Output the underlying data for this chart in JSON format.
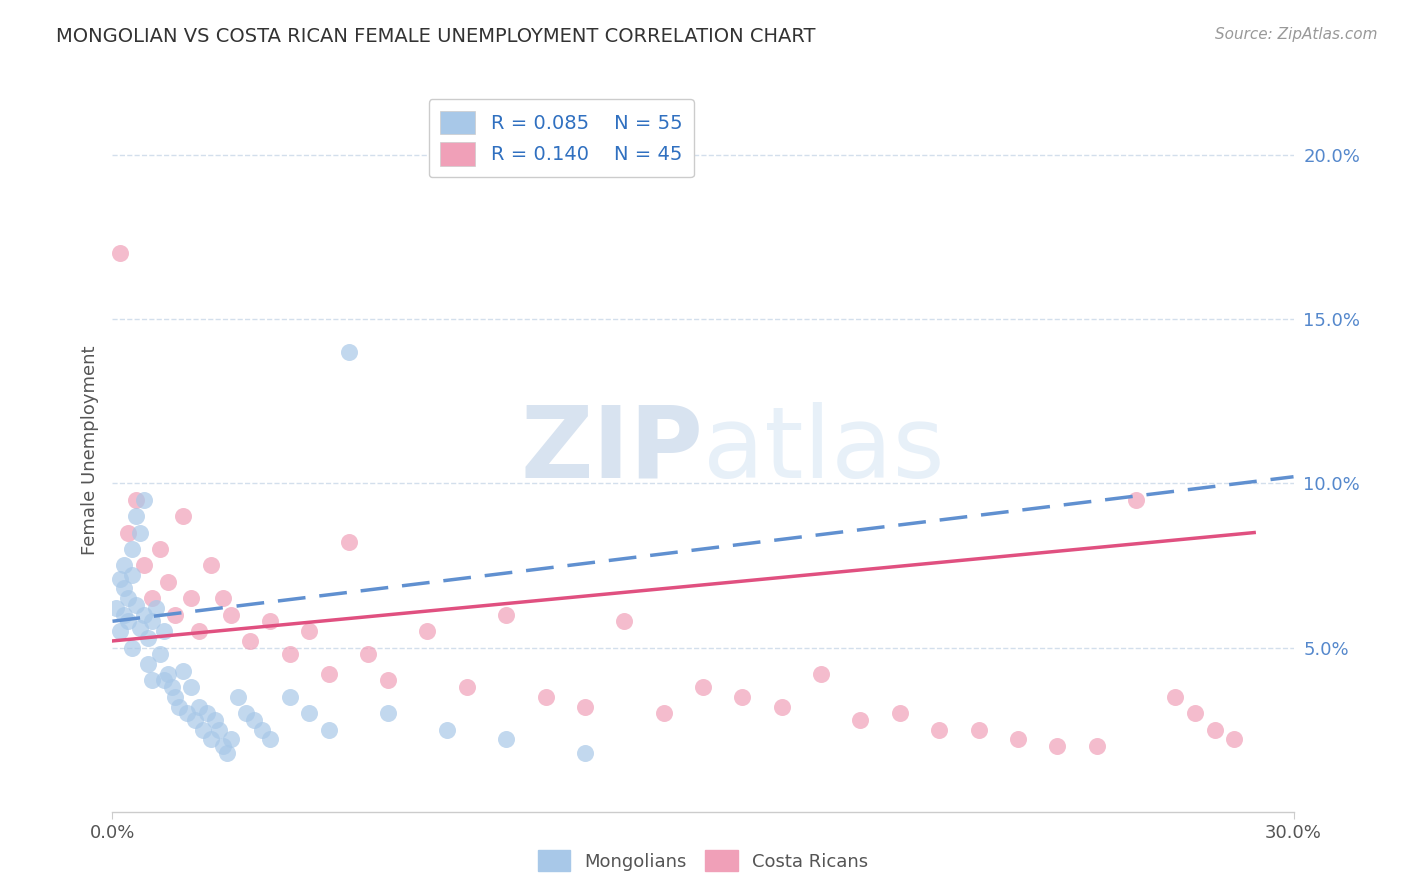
{
  "title": "MONGOLIAN VS COSTA RICAN FEMALE UNEMPLOYMENT CORRELATION CHART",
  "source": "Source: ZipAtlas.com",
  "ylabel": "Female Unemployment",
  "xlim": [
    0,
    0.3
  ],
  "ylim": [
    0,
    0.22
  ],
  "xticks": [
    0.0,
    0.3
  ],
  "xticklabels": [
    "0.0%",
    "30.0%"
  ],
  "yticks": [
    0.05,
    0.1,
    0.15,
    0.2
  ],
  "yticklabels": [
    "5.0%",
    "10.0%",
    "15.0%",
    "20.0%"
  ],
  "mongolian_color": "#a8c8e8",
  "costa_rican_color": "#f0a0b8",
  "mongolian_line_color": "#6090d0",
  "costa_rican_line_color": "#e05080",
  "mongolian_R": 0.085,
  "mongolian_N": 55,
  "costa_rican_R": 0.14,
  "costa_rican_N": 45,
  "legend_text_color": "#3070c0",
  "watermark": "ZIPatlas",
  "background_color": "#ffffff",
  "grid_color": "#c8d8e8",
  "mongolian_scatter_x": [
    0.001,
    0.002,
    0.002,
    0.003,
    0.003,
    0.003,
    0.004,
    0.004,
    0.005,
    0.005,
    0.005,
    0.006,
    0.006,
    0.007,
    0.007,
    0.008,
    0.008,
    0.009,
    0.009,
    0.01,
    0.01,
    0.011,
    0.012,
    0.013,
    0.013,
    0.014,
    0.015,
    0.016,
    0.017,
    0.018,
    0.019,
    0.02,
    0.021,
    0.022,
    0.023,
    0.024,
    0.025,
    0.026,
    0.027,
    0.028,
    0.029,
    0.03,
    0.032,
    0.034,
    0.036,
    0.038,
    0.04,
    0.045,
    0.05,
    0.055,
    0.06,
    0.07,
    0.085,
    0.1,
    0.12
  ],
  "mongolian_scatter_y": [
    0.062,
    0.071,
    0.055,
    0.068,
    0.06,
    0.075,
    0.058,
    0.065,
    0.072,
    0.05,
    0.08,
    0.063,
    0.09,
    0.056,
    0.085,
    0.06,
    0.095,
    0.053,
    0.045,
    0.058,
    0.04,
    0.062,
    0.048,
    0.055,
    0.04,
    0.042,
    0.038,
    0.035,
    0.032,
    0.043,
    0.03,
    0.038,
    0.028,
    0.032,
    0.025,
    0.03,
    0.022,
    0.028,
    0.025,
    0.02,
    0.018,
    0.022,
    0.035,
    0.03,
    0.028,
    0.025,
    0.022,
    0.035,
    0.03,
    0.025,
    0.14,
    0.03,
    0.025,
    0.022,
    0.018
  ],
  "costa_rican_scatter_x": [
    0.002,
    0.004,
    0.006,
    0.008,
    0.01,
    0.012,
    0.014,
    0.016,
    0.018,
    0.02,
    0.022,
    0.025,
    0.028,
    0.03,
    0.035,
    0.04,
    0.045,
    0.05,
    0.055,
    0.06,
    0.065,
    0.07,
    0.08,
    0.09,
    0.1,
    0.11,
    0.12,
    0.13,
    0.14,
    0.15,
    0.16,
    0.17,
    0.18,
    0.19,
    0.2,
    0.21,
    0.22,
    0.23,
    0.24,
    0.25,
    0.26,
    0.27,
    0.275,
    0.28,
    0.285
  ],
  "costa_rican_scatter_y": [
    0.17,
    0.085,
    0.095,
    0.075,
    0.065,
    0.08,
    0.07,
    0.06,
    0.09,
    0.065,
    0.055,
    0.075,
    0.065,
    0.06,
    0.052,
    0.058,
    0.048,
    0.055,
    0.042,
    0.082,
    0.048,
    0.04,
    0.055,
    0.038,
    0.06,
    0.035,
    0.032,
    0.058,
    0.03,
    0.038,
    0.035,
    0.032,
    0.042,
    0.028,
    0.03,
    0.025,
    0.025,
    0.022,
    0.02,
    0.02,
    0.095,
    0.035,
    0.03,
    0.025,
    0.022
  ],
  "mon_trend_x": [
    0.0,
    0.3
  ],
  "mon_trend_y": [
    0.058,
    0.102
  ],
  "cr_trend_x": [
    0.0,
    0.29
  ],
  "cr_trend_y": [
    0.052,
    0.085
  ]
}
